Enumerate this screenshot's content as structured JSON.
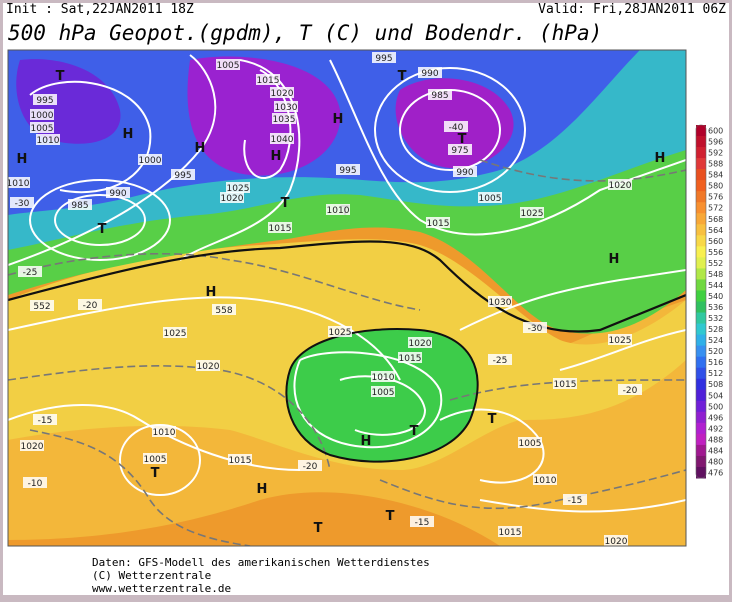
{
  "header": {
    "init": "Init : Sat,22JAN2011 18Z",
    "valid": "Valid: Fri,28JAN2011 06Z",
    "title": "500 hPa Geopot.(gpdm), T (C) und Bodendr. (hPa)"
  },
  "map": {
    "labels": [
      "T",
      "995",
      "1000",
      "1005",
      "1010",
      "H",
      "H",
      "1000",
      "1010",
      "-30",
      "985",
      "T",
      "990",
      "995",
      "1005",
      "1015",
      "1020",
      "1030",
      "1035",
      "1040",
      "H",
      "H",
      "1025",
      "1020",
      "T",
      "1015",
      "H",
      "T",
      "995",
      "1010",
      "995",
      "990",
      "985",
      "T",
      "-40",
      "975",
      "T",
      "990",
      "1005",
      "1015",
      "1025",
      "H",
      "H",
      "552",
      "558",
      "1025",
      "1030",
      "1025",
      "1020",
      "1015",
      "1010",
      "1005",
      "H",
      "T",
      "T",
      "1005",
      "1010",
      "1020",
      "1005",
      "T",
      "1010",
      "1015",
      "H",
      "T",
      "T",
      "-15",
      "-10",
      "1015",
      "1020",
      "-25",
      "-20",
      "-15",
      "1020",
      "-20",
      "-25",
      "-30",
      "1020",
      "1025",
      "-20",
      "1015",
      "-15",
      "H"
    ]
  },
  "colorbar": {
    "ticks": [
      600,
      596,
      592,
      588,
      584,
      580,
      576,
      572,
      568,
      564,
      560,
      556,
      552,
      548,
      544,
      540,
      536,
      532,
      528,
      524,
      520,
      516,
      512,
      508,
      504,
      500,
      496,
      492,
      488,
      484,
      480,
      476
    ],
    "colors": [
      "#b0002a",
      "#c0102c",
      "#d02030",
      "#e03838",
      "#e85020",
      "#f06020",
      "#f07828",
      "#f89030",
      "#f8a838",
      "#f8c040",
      "#f8d848",
      "#f8f050",
      "#e0f050",
      "#b0e848",
      "#70d840",
      "#40d040",
      "#30c060",
      "#30c8a0",
      "#30c8d0",
      "#30b0e8",
      "#3890f0",
      "#3070f0",
      "#3050e8",
      "#3030e0",
      "#5020d8",
      "#7020d8",
      "#9020d0",
      "#b020d0",
      "#c020c0",
      "#a01890",
      "#801870",
      "#601060"
    ]
  },
  "footer": [
    "Daten: GFS-Modell des amerikanischen Wetterdienstes",
    "(C) Wetterzentrale",
    "www.wetterzentrale.de"
  ]
}
